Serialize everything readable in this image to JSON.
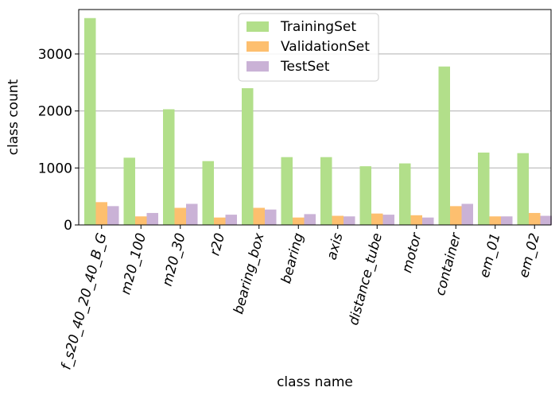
{
  "chart_data": {
    "type": "bar",
    "title": "",
    "xlabel": "class name",
    "ylabel": "class count",
    "categories": [
      "f_s20_40_20_40_B_G",
      "m20_100",
      "m20_30",
      "r20",
      "bearing_box",
      "bearing",
      "axis",
      "distance_tube",
      "motor",
      "container",
      "em_01",
      "em_02"
    ],
    "series": [
      {
        "name": "TrainingSet",
        "color": "#b2df8a",
        "values": [
          3630,
          1180,
          2030,
          1120,
          2400,
          1190,
          1190,
          1030,
          1080,
          2780,
          1270,
          1260
        ]
      },
      {
        "name": "ValidationSet",
        "color": "#fdbf6f",
        "values": [
          400,
          150,
          300,
          130,
          300,
          130,
          160,
          200,
          170,
          330,
          150,
          210
        ]
      },
      {
        "name": "TestSet",
        "color": "#cab2d6",
        "values": [
          330,
          210,
          370,
          180,
          270,
          190,
          150,
          180,
          130,
          370,
          150,
          160
        ]
      }
    ],
    "ylim": [
      0,
      3780
    ],
    "yticks": [
      0,
      1000,
      2000,
      3000
    ],
    "ygrid": true,
    "legend_position": "top-center"
  }
}
